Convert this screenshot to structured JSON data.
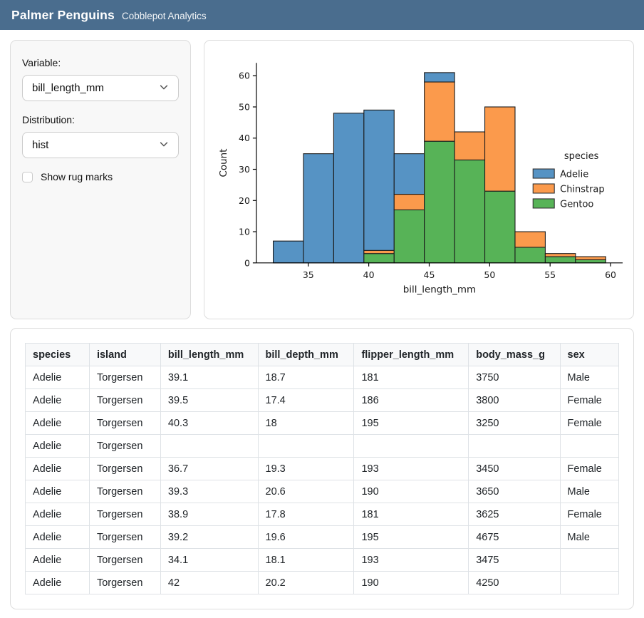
{
  "header": {
    "title": "Palmer Penguins",
    "subtitle": "Cobblepot Analytics"
  },
  "colors": {
    "header_bg": "#4a6d8e",
    "adelie": "#5693c4",
    "chinstrap": "#fb9a4c",
    "gentoo": "#57b357",
    "bar_edge": "#1c1c1c"
  },
  "sidebar": {
    "variable": {
      "label": "Variable:",
      "value": "bill_length_mm"
    },
    "distribution": {
      "label": "Distribution:",
      "value": "hist"
    },
    "rug": {
      "label": "Show rug marks",
      "checked": false
    }
  },
  "chart_data": {
    "type": "bar",
    "subtype": "stacked-histogram",
    "xlabel": "bill_length_mm",
    "ylabel": "Count",
    "x_ticks": [
      35,
      40,
      45,
      50,
      55,
      60
    ],
    "y_ticks": [
      0,
      10,
      20,
      30,
      40,
      50,
      60
    ],
    "xlim": [
      30.7,
      61.0
    ],
    "ylim": [
      0,
      64
    ],
    "grid": false,
    "bin_edges": [
      32.1,
      34.6,
      37.1,
      39.6,
      42.1,
      44.6,
      47.1,
      49.6,
      52.1,
      54.6,
      57.1,
      59.6
    ],
    "bin_totals": [
      7,
      35,
      48,
      49,
      35,
      61,
      42,
      50,
      10,
      3,
      2
    ],
    "stack_order_bottom_to_top": [
      "Gentoo",
      "Chinstrap",
      "Adelie"
    ],
    "series": [
      {
        "name": "Adelie",
        "color": "#5693c4",
        "values": [
          7,
          35,
          48,
          45,
          13,
          3,
          0,
          0,
          0,
          0,
          0
        ]
      },
      {
        "name": "Chinstrap",
        "color": "#fb9a4c",
        "values": [
          0,
          0,
          0,
          1,
          5,
          19,
          9,
          27,
          5,
          1,
          1
        ]
      },
      {
        "name": "Gentoo",
        "color": "#57b357",
        "values": [
          0,
          0,
          0,
          3,
          17,
          39,
          33,
          23,
          5,
          2,
          1
        ]
      }
    ],
    "legend": {
      "title": "species",
      "position": "right",
      "entries": [
        {
          "label": "Adelie",
          "color": "#5693c4"
        },
        {
          "label": "Chinstrap",
          "color": "#fb9a4c"
        },
        {
          "label": "Gentoo",
          "color": "#57b357"
        }
      ]
    }
  },
  "table": {
    "columns": [
      "species",
      "island",
      "bill_length_mm",
      "bill_depth_mm",
      "flipper_length_mm",
      "body_mass_g",
      "sex"
    ],
    "col_widths": [
      "10.8%",
      "12.0%",
      "16.4%",
      "16.2%",
      "19.3%",
      "15.4%",
      "9.9%"
    ],
    "rows": [
      [
        "Adelie",
        "Torgersen",
        "39.1",
        "18.7",
        "181",
        "3750",
        "Male"
      ],
      [
        "Adelie",
        "Torgersen",
        "39.5",
        "17.4",
        "186",
        "3800",
        "Female"
      ],
      [
        "Adelie",
        "Torgersen",
        "40.3",
        "18",
        "195",
        "3250",
        "Female"
      ],
      [
        "Adelie",
        "Torgersen",
        "",
        "",
        "",
        "",
        ""
      ],
      [
        "Adelie",
        "Torgersen",
        "36.7",
        "19.3",
        "193",
        "3450",
        "Female"
      ],
      [
        "Adelie",
        "Torgersen",
        "39.3",
        "20.6",
        "190",
        "3650",
        "Male"
      ],
      [
        "Adelie",
        "Torgersen",
        "38.9",
        "17.8",
        "181",
        "3625",
        "Female"
      ],
      [
        "Adelie",
        "Torgersen",
        "39.2",
        "19.6",
        "195",
        "4675",
        "Male"
      ],
      [
        "Adelie",
        "Torgersen",
        "34.1",
        "18.1",
        "193",
        "3475",
        ""
      ],
      [
        "Adelie",
        "Torgersen",
        "42",
        "20.2",
        "190",
        "4250",
        ""
      ]
    ]
  }
}
